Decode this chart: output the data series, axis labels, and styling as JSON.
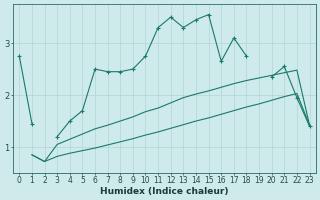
{
  "title": "",
  "xlabel": "Humidex (Indice chaleur)",
  "bg_color": "#ceeaea",
  "grid_color": "#b8d8d8",
  "line_color": "#1a7a6a",
  "xlim": [
    -0.5,
    23.5
  ],
  "ylim": [
    0.5,
    3.75
  ],
  "yticks": [
    1,
    2,
    3
  ],
  "xticks": [
    0,
    1,
    2,
    3,
    4,
    5,
    6,
    7,
    8,
    9,
    10,
    11,
    12,
    13,
    14,
    15,
    16,
    17,
    18,
    19,
    20,
    21,
    22,
    23
  ],
  "line1_x": [
    0,
    1,
    2,
    3,
    4,
    5,
    6,
    7,
    8,
    9,
    10,
    11,
    12,
    13,
    14,
    15,
    16,
    17,
    18,
    19,
    20,
    21,
    22,
    23
  ],
  "line1_y": [
    2.75,
    1.45,
    null,
    1.2,
    1.5,
    1.7,
    2.5,
    2.45,
    2.45,
    2.5,
    2.75,
    3.3,
    3.5,
    3.3,
    3.45,
    3.55,
    2.65,
    3.1,
    2.75,
    null,
    2.35,
    2.55,
    1.95,
    1.4
  ],
  "line2_x": [
    1,
    2,
    3,
    4,
    5,
    6,
    7,
    8,
    9,
    10,
    11,
    12,
    13,
    14,
    15,
    16,
    17,
    18,
    19,
    20,
    21,
    22,
    23
  ],
  "line2_y": [
    0.85,
    0.72,
    1.05,
    1.15,
    1.25,
    1.35,
    1.42,
    1.5,
    1.58,
    1.68,
    1.75,
    1.85,
    1.95,
    2.02,
    2.08,
    2.15,
    2.22,
    2.28,
    2.33,
    2.38,
    2.43,
    2.48,
    1.42
  ],
  "line3_x": [
    1,
    2,
    3,
    4,
    5,
    6,
    7,
    8,
    9,
    10,
    11,
    12,
    13,
    14,
    15,
    16,
    17,
    18,
    19,
    20,
    21,
    22,
    23
  ],
  "line3_y": [
    0.85,
    0.72,
    0.82,
    0.88,
    0.93,
    0.98,
    1.04,
    1.1,
    1.16,
    1.23,
    1.29,
    1.36,
    1.43,
    1.5,
    1.56,
    1.63,
    1.7,
    1.77,
    1.83,
    1.9,
    1.97,
    2.03,
    1.42
  ],
  "tick_fontsize": 5.5,
  "xlabel_fontsize": 6.5,
  "xlabel_fontweight": "bold"
}
